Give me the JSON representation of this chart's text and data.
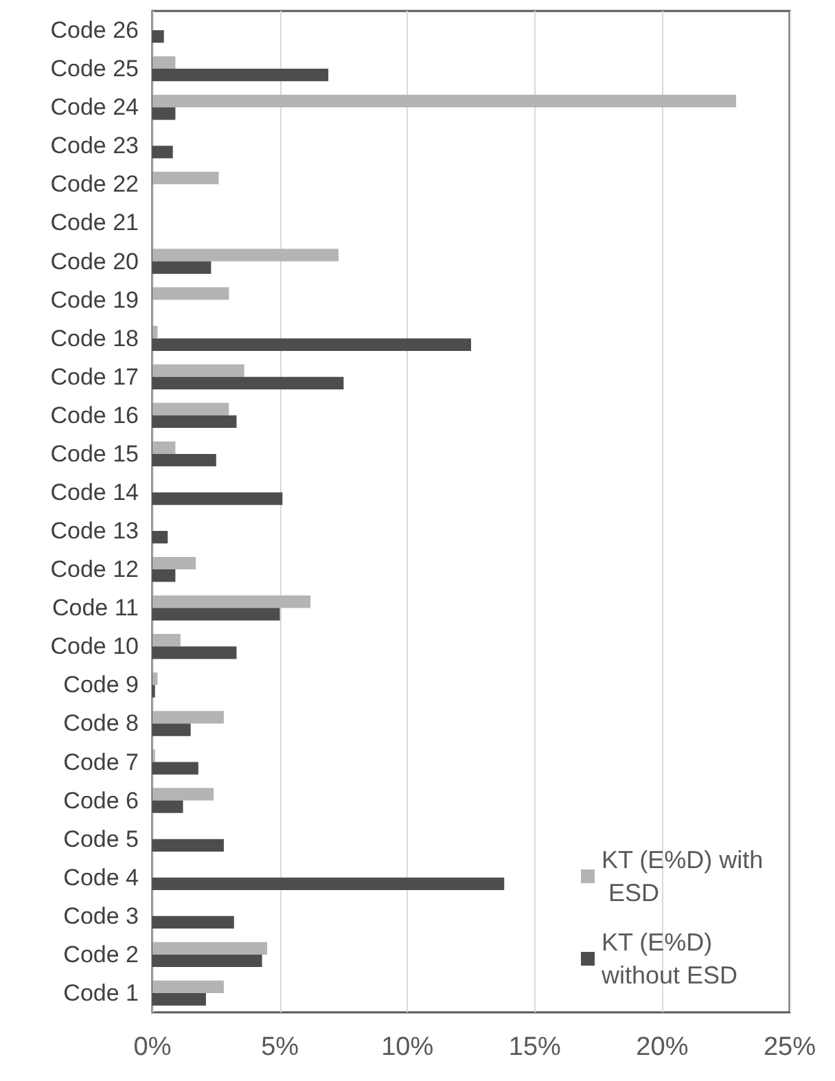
{
  "chart_data": {
    "type": "bar",
    "orientation": "horizontal",
    "categories": [
      "Code 26",
      "Code 25",
      "Code 24",
      "Code 23",
      "Code 22",
      "Code 21",
      "Code 20",
      "Code 19",
      "Code 18",
      "Code 17",
      "Code 16",
      "Code 15",
      "Code 14",
      "Code 13",
      "Code 12",
      "Code 11",
      "Code 10",
      "Code 9",
      "Code 8",
      "Code 7",
      "Code 6",
      "Code 5",
      "Code 4",
      "Code 3",
      "Code 2",
      "Code 1"
    ],
    "series": [
      {
        "name": "KT (E%D) with ESD",
        "color": "#b4b4b4",
        "values": [
          null,
          0.9,
          22.9,
          null,
          2.6,
          null,
          7.3,
          3.0,
          0.2,
          3.6,
          3.0,
          0.9,
          null,
          null,
          1.7,
          6.2,
          1.1,
          0.2,
          2.8,
          0.1,
          2.4,
          null,
          null,
          null,
          4.5,
          2.8
        ]
      },
      {
        "name": "KT (E%D) without ESD",
        "color": "#4d4d4d",
        "values": [
          0.45,
          6.9,
          0.9,
          0.8,
          null,
          null,
          2.3,
          null,
          12.5,
          7.5,
          3.3,
          2.5,
          5.1,
          0.6,
          0.9,
          5.0,
          3.3,
          0.1,
          1.5,
          1.8,
          1.2,
          2.8,
          13.8,
          3.2,
          4.3,
          2.1
        ]
      }
    ],
    "xlim": [
      0,
      25
    ],
    "xticks": [
      {
        "value": 0,
        "label": "0%"
      },
      {
        "value": 5,
        "label": "5%"
      },
      {
        "value": 10,
        "label": "10%"
      },
      {
        "value": 15,
        "label": "15%"
      },
      {
        "value": 20,
        "label": "20%"
      },
      {
        "value": 25,
        "label": "25%"
      }
    ],
    "grid": "x",
    "legend": "bottom right"
  }
}
